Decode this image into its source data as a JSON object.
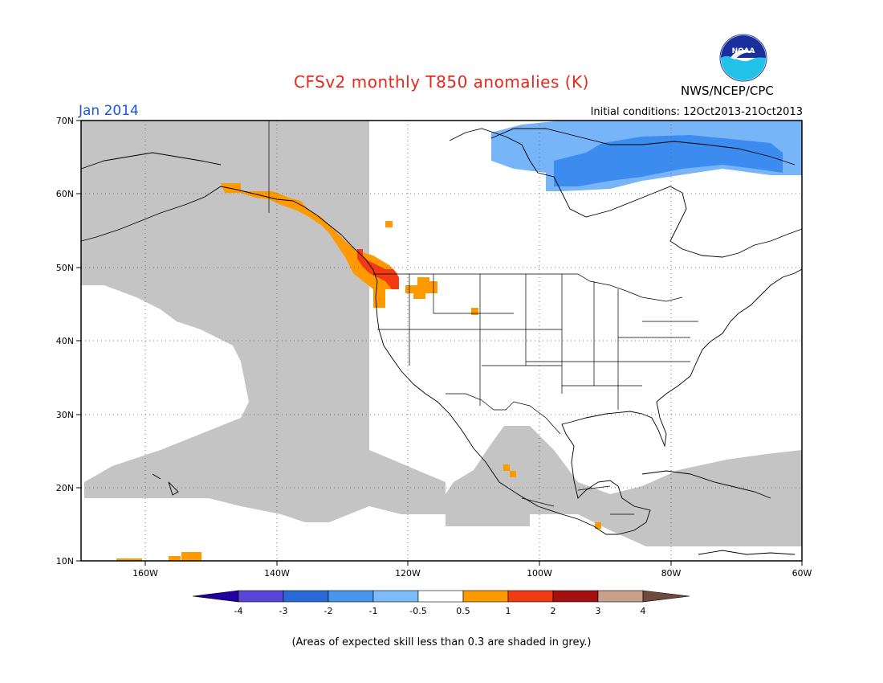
{
  "header": {
    "title": "CFSv2 monthly T850 anomalies (K)",
    "month": "Jan 2014",
    "initial_conditions": "Initial conditions: 12Oct2013-21Oct2013",
    "agency": "NWS/NCEP/CPC",
    "logo_text": "NOAA"
  },
  "colors": {
    "title": "#e8281c",
    "month": "#1a55e0",
    "skill_grey": "#c4c4c4",
    "anom_pos_0_5": "#ff9900",
    "anom_pos_1": "#f23a14",
    "anom_pos_2": "#a60f0f",
    "anom_neg_0_5": "#78b4f8",
    "anom_neg_1": "#3c8cf0"
  },
  "axes": {
    "lat_labels": [
      "70N",
      "60N",
      "50N",
      "40N",
      "30N",
      "20N",
      "10N"
    ],
    "lon_labels": [
      "160W",
      "140W",
      "120W",
      "100W",
      "80W",
      "60W"
    ]
  },
  "colorbar": {
    "labels": [
      "-4",
      "-3",
      "-2",
      "-1",
      "-0.5",
      "0.5",
      "1",
      "2",
      "3",
      "4"
    ],
    "colors": [
      "#2200a0",
      "#5a46d6",
      "#2a6ad8",
      "#4596ec",
      "#7cbcf8",
      "#ffffff",
      "#ff9900",
      "#f23a14",
      "#a60f0f",
      "#c8a08c",
      "#6e4a3c"
    ]
  },
  "footnote": "(Areas of expected skill less than 0.3 are shaded in grey.)"
}
